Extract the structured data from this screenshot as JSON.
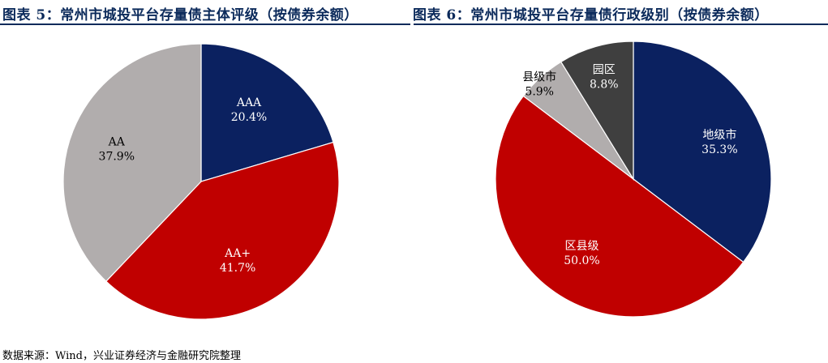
{
  "titles": {
    "left": "图表 5：常州市城投平台存量债主体评级（按债券余额）",
    "right": "图表 6：常州市城投平台存量债行政级别（按债券余额）"
  },
  "source": "数据来源：Wind，兴业证券经济与金融研究院整理",
  "chart_data": [
    {
      "type": "pie",
      "title": "图表 5：常州市城投平台存量债主体评级（按债券余额）",
      "slices": [
        {
          "label": "AAA",
          "value": 20.4,
          "display": "20.4%",
          "color": "#0b2160"
        },
        {
          "label": "AA+",
          "value": 41.7,
          "display": "41.7%",
          "color": "#c00000"
        },
        {
          "label": "AA",
          "value": 37.9,
          "display": "37.9%",
          "color": "#b1adad"
        }
      ]
    },
    {
      "type": "pie",
      "title": "图表 6：常州市城投平台存量债行政级别（按债券余额）",
      "slices": [
        {
          "label": "地级市",
          "value": 35.3,
          "display": "35.3%",
          "color": "#0b2160"
        },
        {
          "label": "区县级",
          "value": 50.0,
          "display": "50.0%",
          "color": "#c00000"
        },
        {
          "label": "县级市",
          "value": 5.9,
          "display": "5.9%",
          "color": "#b1adad"
        },
        {
          "label": "园区",
          "value": 8.8,
          "display": "8.8%",
          "color": "#3f3f3f"
        }
      ]
    }
  ]
}
